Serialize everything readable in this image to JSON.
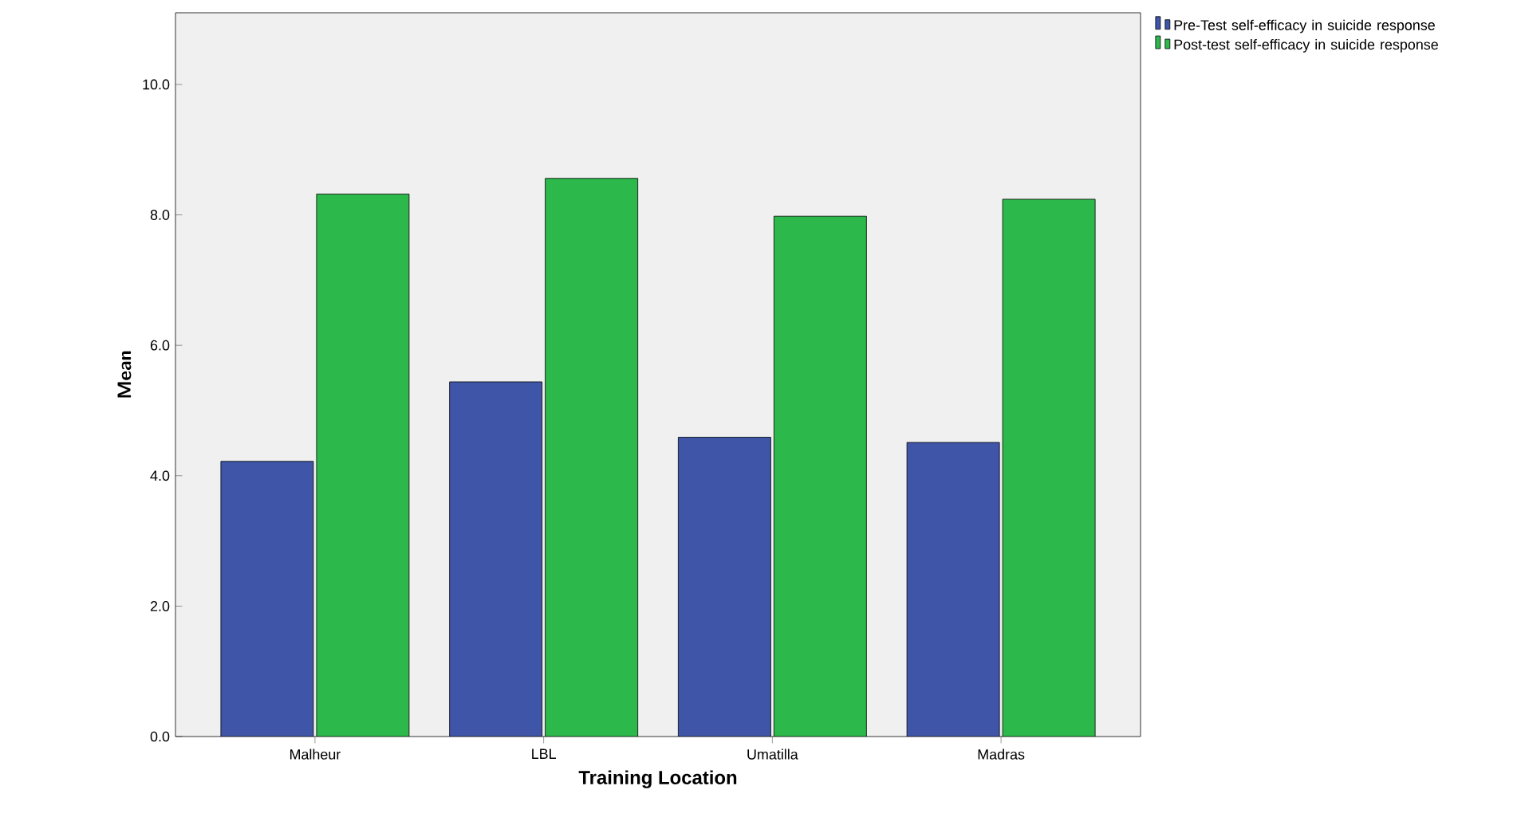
{
  "chart_data": {
    "type": "bar",
    "xlabel": "Training Location",
    "ylabel": "Mean",
    "categories": [
      "Malheur",
      "LBL",
      "Umatilla",
      "Madras"
    ],
    "series": [
      {
        "name": "Pre-Test self-efficacy in suicide response",
        "color": "#3f55a8",
        "values": [
          4.22,
          5.44,
          4.59,
          4.51
        ]
      },
      {
        "name": "Post-test self-efficacy in suicide response",
        "color": "#2db84b",
        "values": [
          8.32,
          8.56,
          7.98,
          8.24
        ]
      }
    ],
    "ylim": [
      0,
      11.1
    ],
    "yticks": [
      {
        "value": 0,
        "label": "0.0"
      },
      {
        "value": 2,
        "label": "2.0"
      },
      {
        "value": 4,
        "label": "4.0"
      },
      {
        "value": 6,
        "label": "6.0"
      },
      {
        "value": 8,
        "label": "8.0"
      },
      {
        "value": 10,
        "label": "10.0"
      }
    ],
    "legend": "top right"
  }
}
